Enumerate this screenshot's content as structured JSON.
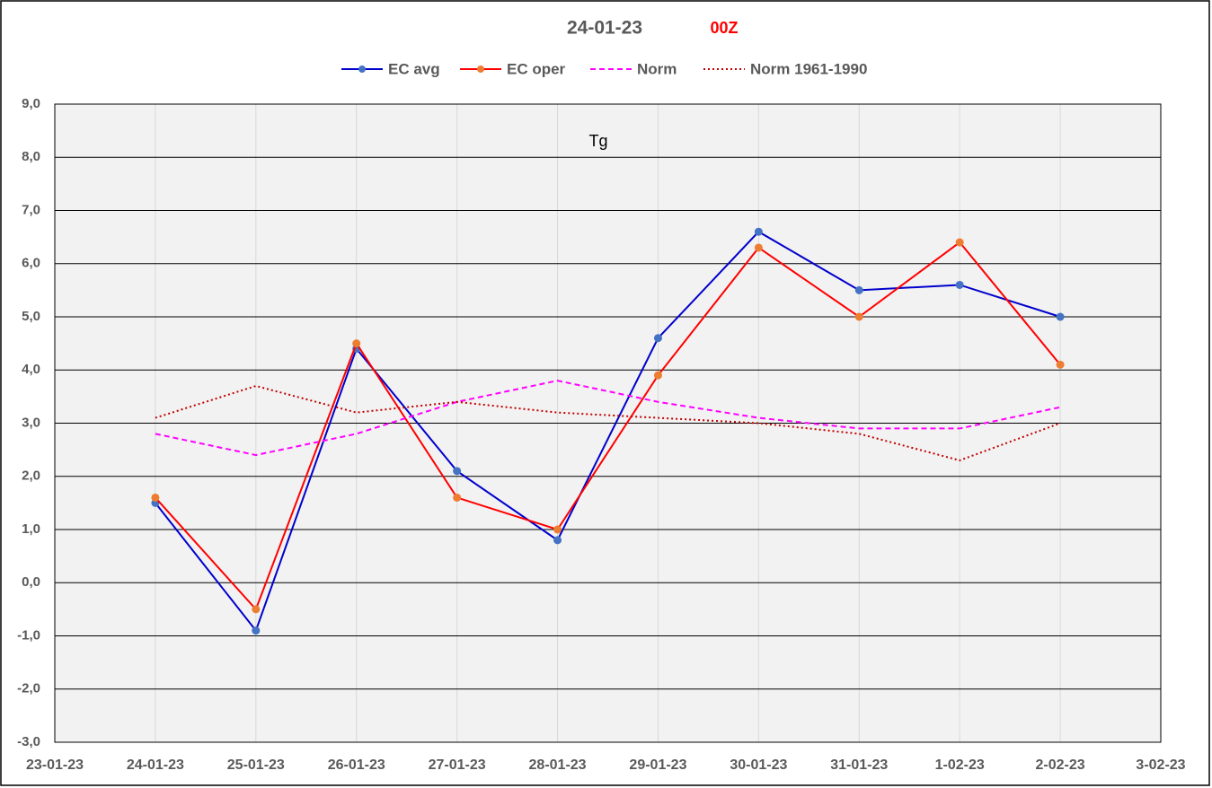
{
  "chart_data": {
    "type": "line",
    "title": "24-01-23",
    "subtitle": "00Z",
    "subtitle_color": "#ff0000",
    "annotation": "Tg",
    "categories": [
      "23-01-23",
      "24-01-23",
      "25-01-23",
      "26-01-23",
      "27-01-23",
      "28-01-23",
      "29-01-23",
      "30-01-23",
      "31-01-23",
      "1-02-23",
      "2-02-23",
      "3-02-23"
    ],
    "series": [
      {
        "name": "EC avg",
        "color": "#0000cc",
        "marker_color": "#4472c4",
        "style": "solid",
        "markers": true,
        "values": [
          null,
          1.5,
          -0.9,
          4.4,
          2.1,
          0.8,
          4.6,
          6.6,
          5.5,
          5.6,
          5.0,
          null
        ]
      },
      {
        "name": "EC oper",
        "color": "#ff0000",
        "marker_color": "#ed7d31",
        "style": "solid",
        "markers": true,
        "values": [
          null,
          1.6,
          -0.5,
          4.5,
          1.6,
          1.0,
          3.9,
          6.3,
          5.0,
          6.4,
          4.1,
          null
        ]
      },
      {
        "name": "Norm",
        "color": "#ff00ff",
        "style": "dashed",
        "markers": false,
        "values": [
          null,
          2.8,
          2.4,
          2.8,
          3.4,
          3.8,
          3.4,
          3.1,
          2.9,
          2.9,
          3.3,
          null
        ]
      },
      {
        "name": "Norm 1961-1990",
        "color": "#c00000",
        "style": "dotted",
        "markers": false,
        "values": [
          null,
          3.1,
          3.7,
          3.2,
          3.4,
          3.2,
          3.1,
          3.0,
          2.8,
          2.3,
          3.0,
          null
        ]
      }
    ],
    "ylim": [
      -3,
      9
    ],
    "yticks": [
      {
        "value": -3,
        "label": "-3,0"
      },
      {
        "value": -2,
        "label": "-2,0"
      },
      {
        "value": -1,
        "label": "-1,0"
      },
      {
        "value": 0,
        "label": "0,0"
      },
      {
        "value": 1,
        "label": "1,0"
      },
      {
        "value": 2,
        "label": "2,0"
      },
      {
        "value": 3,
        "label": "3,0"
      },
      {
        "value": 4,
        "label": "4,0"
      },
      {
        "value": 5,
        "label": "5,0"
      },
      {
        "value": 6,
        "label": "6,0"
      },
      {
        "value": 7,
        "label": "7,0"
      },
      {
        "value": 8,
        "label": "8,0"
      },
      {
        "value": 9,
        "label": "9,0"
      }
    ],
    "grid": true,
    "legend": "top"
  }
}
